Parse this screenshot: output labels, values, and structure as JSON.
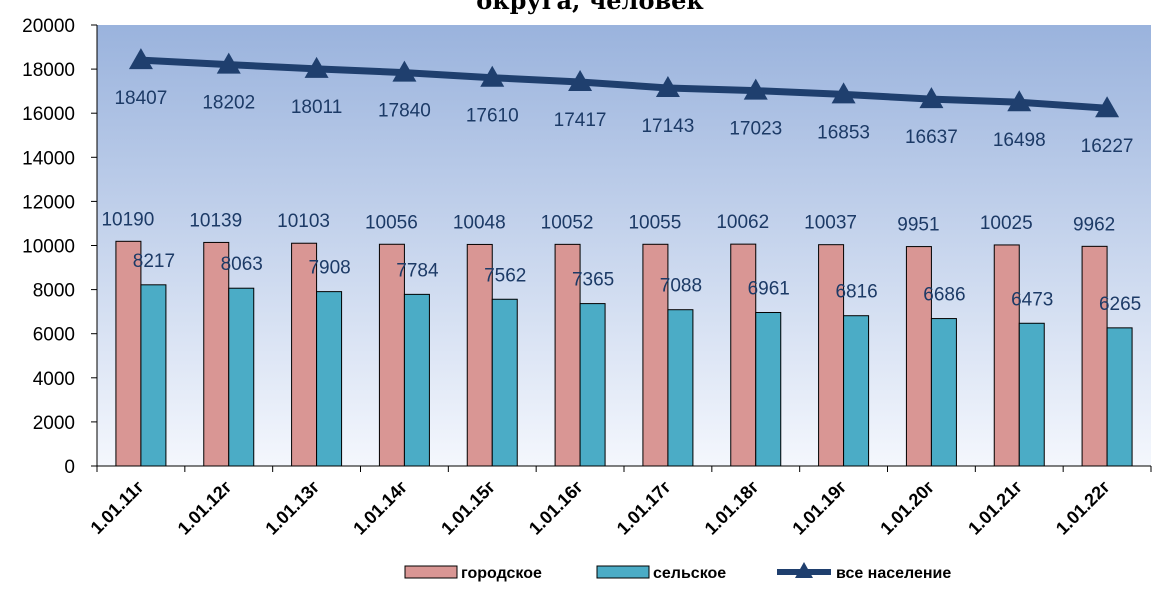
{
  "chart_data": {
    "type": "bar",
    "title": "округа, человек",
    "categories": [
      "1.01.11г",
      "1.01.12г",
      "1.01.13г",
      "1.01.14г",
      "1.01.15г",
      "1.01.16г",
      "1.01.17г",
      "1.01.18г",
      "1.01.19г",
      "1.01.20г",
      "1.01.21г",
      "1.01.22г"
    ],
    "ylim": [
      0,
      20000
    ],
    "yticks": [
      0,
      2000,
      4000,
      6000,
      8000,
      10000,
      12000,
      14000,
      16000,
      18000,
      20000
    ],
    "grid": false,
    "legend_position": "bottom",
    "series": [
      {
        "name": "городское",
        "type": "bar",
        "color": "#d99694",
        "values": [
          10190,
          10139,
          10103,
          10056,
          10048,
          10052,
          10055,
          10062,
          10037,
          9951,
          10025,
          9962
        ]
      },
      {
        "name": "сельское",
        "type": "bar",
        "color": "#4bacc6",
        "values": [
          8217,
          8063,
          7908,
          7784,
          7562,
          7365,
          7088,
          6961,
          6816,
          6686,
          6473,
          6265
        ]
      },
      {
        "name": "все население",
        "type": "line",
        "marker": "triangle",
        "color": "#1f3f6e",
        "values": [
          18407,
          18202,
          18011,
          17840,
          17610,
          17417,
          17143,
          17023,
          16853,
          16637,
          16498,
          16227
        ]
      }
    ]
  }
}
